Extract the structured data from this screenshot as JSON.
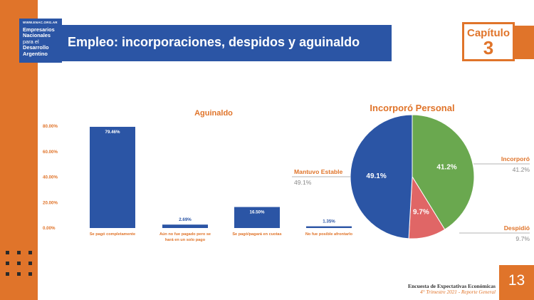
{
  "header": {
    "logo": {
      "url": "WWW.ENAC.ORG.AR",
      "lines": [
        "Empresarios",
        "Nacionales",
        "para el",
        "Desarrollo",
        "Argentino"
      ]
    },
    "title": "Empleo: incorporaciones, despidos y aguinaldo",
    "chapter_label": "Capítulo",
    "chapter_number": "3"
  },
  "footer": {
    "line1": "Encuesta de Expectativas Económicas",
    "line2": "4° Trimestre 2021 - Reporte General",
    "page_number": "13"
  },
  "colors": {
    "brand_orange": "#e0742a",
    "brand_blue": "#2b55a5",
    "pie_green": "#6aa84f",
    "pie_red": "#e06666"
  },
  "chart_data": [
    {
      "type": "bar",
      "title": "Aguinaldo",
      "categories": [
        [
          "Se pagó completamente"
        ],
        [
          "Aún no fue pagado pero se",
          "hará en un solo pago"
        ],
        [
          "Se pagó/pagará en cuotas"
        ],
        [
          "No fue posible afrontarlo"
        ]
      ],
      "values": [
        79.46,
        2.69,
        16.5,
        1.35
      ],
      "value_labels": [
        "79.46%",
        "2.69%",
        "16.50%",
        "1.35%"
      ],
      "yticks": [
        "0.00%",
        "20.00%",
        "40.00%",
        "60.00%",
        "80.00%"
      ],
      "ylim": [
        0,
        80
      ],
      "xlabel": "",
      "ylabel": "",
      "grid": false,
      "bar_color": "#2b55a5"
    },
    {
      "type": "pie",
      "title": "Incorporó Personal",
      "slices": [
        {
          "name": "Incorporó",
          "value": 41.2,
          "label": "41.2%",
          "color": "#6aa84f"
        },
        {
          "name": "Despidió",
          "value": 9.7,
          "label": "9.7%",
          "color": "#e06666"
        },
        {
          "name": "Mantuvo Estable",
          "value": 49.1,
          "label": "49.1%",
          "color": "#2b55a5"
        }
      ]
    }
  ]
}
